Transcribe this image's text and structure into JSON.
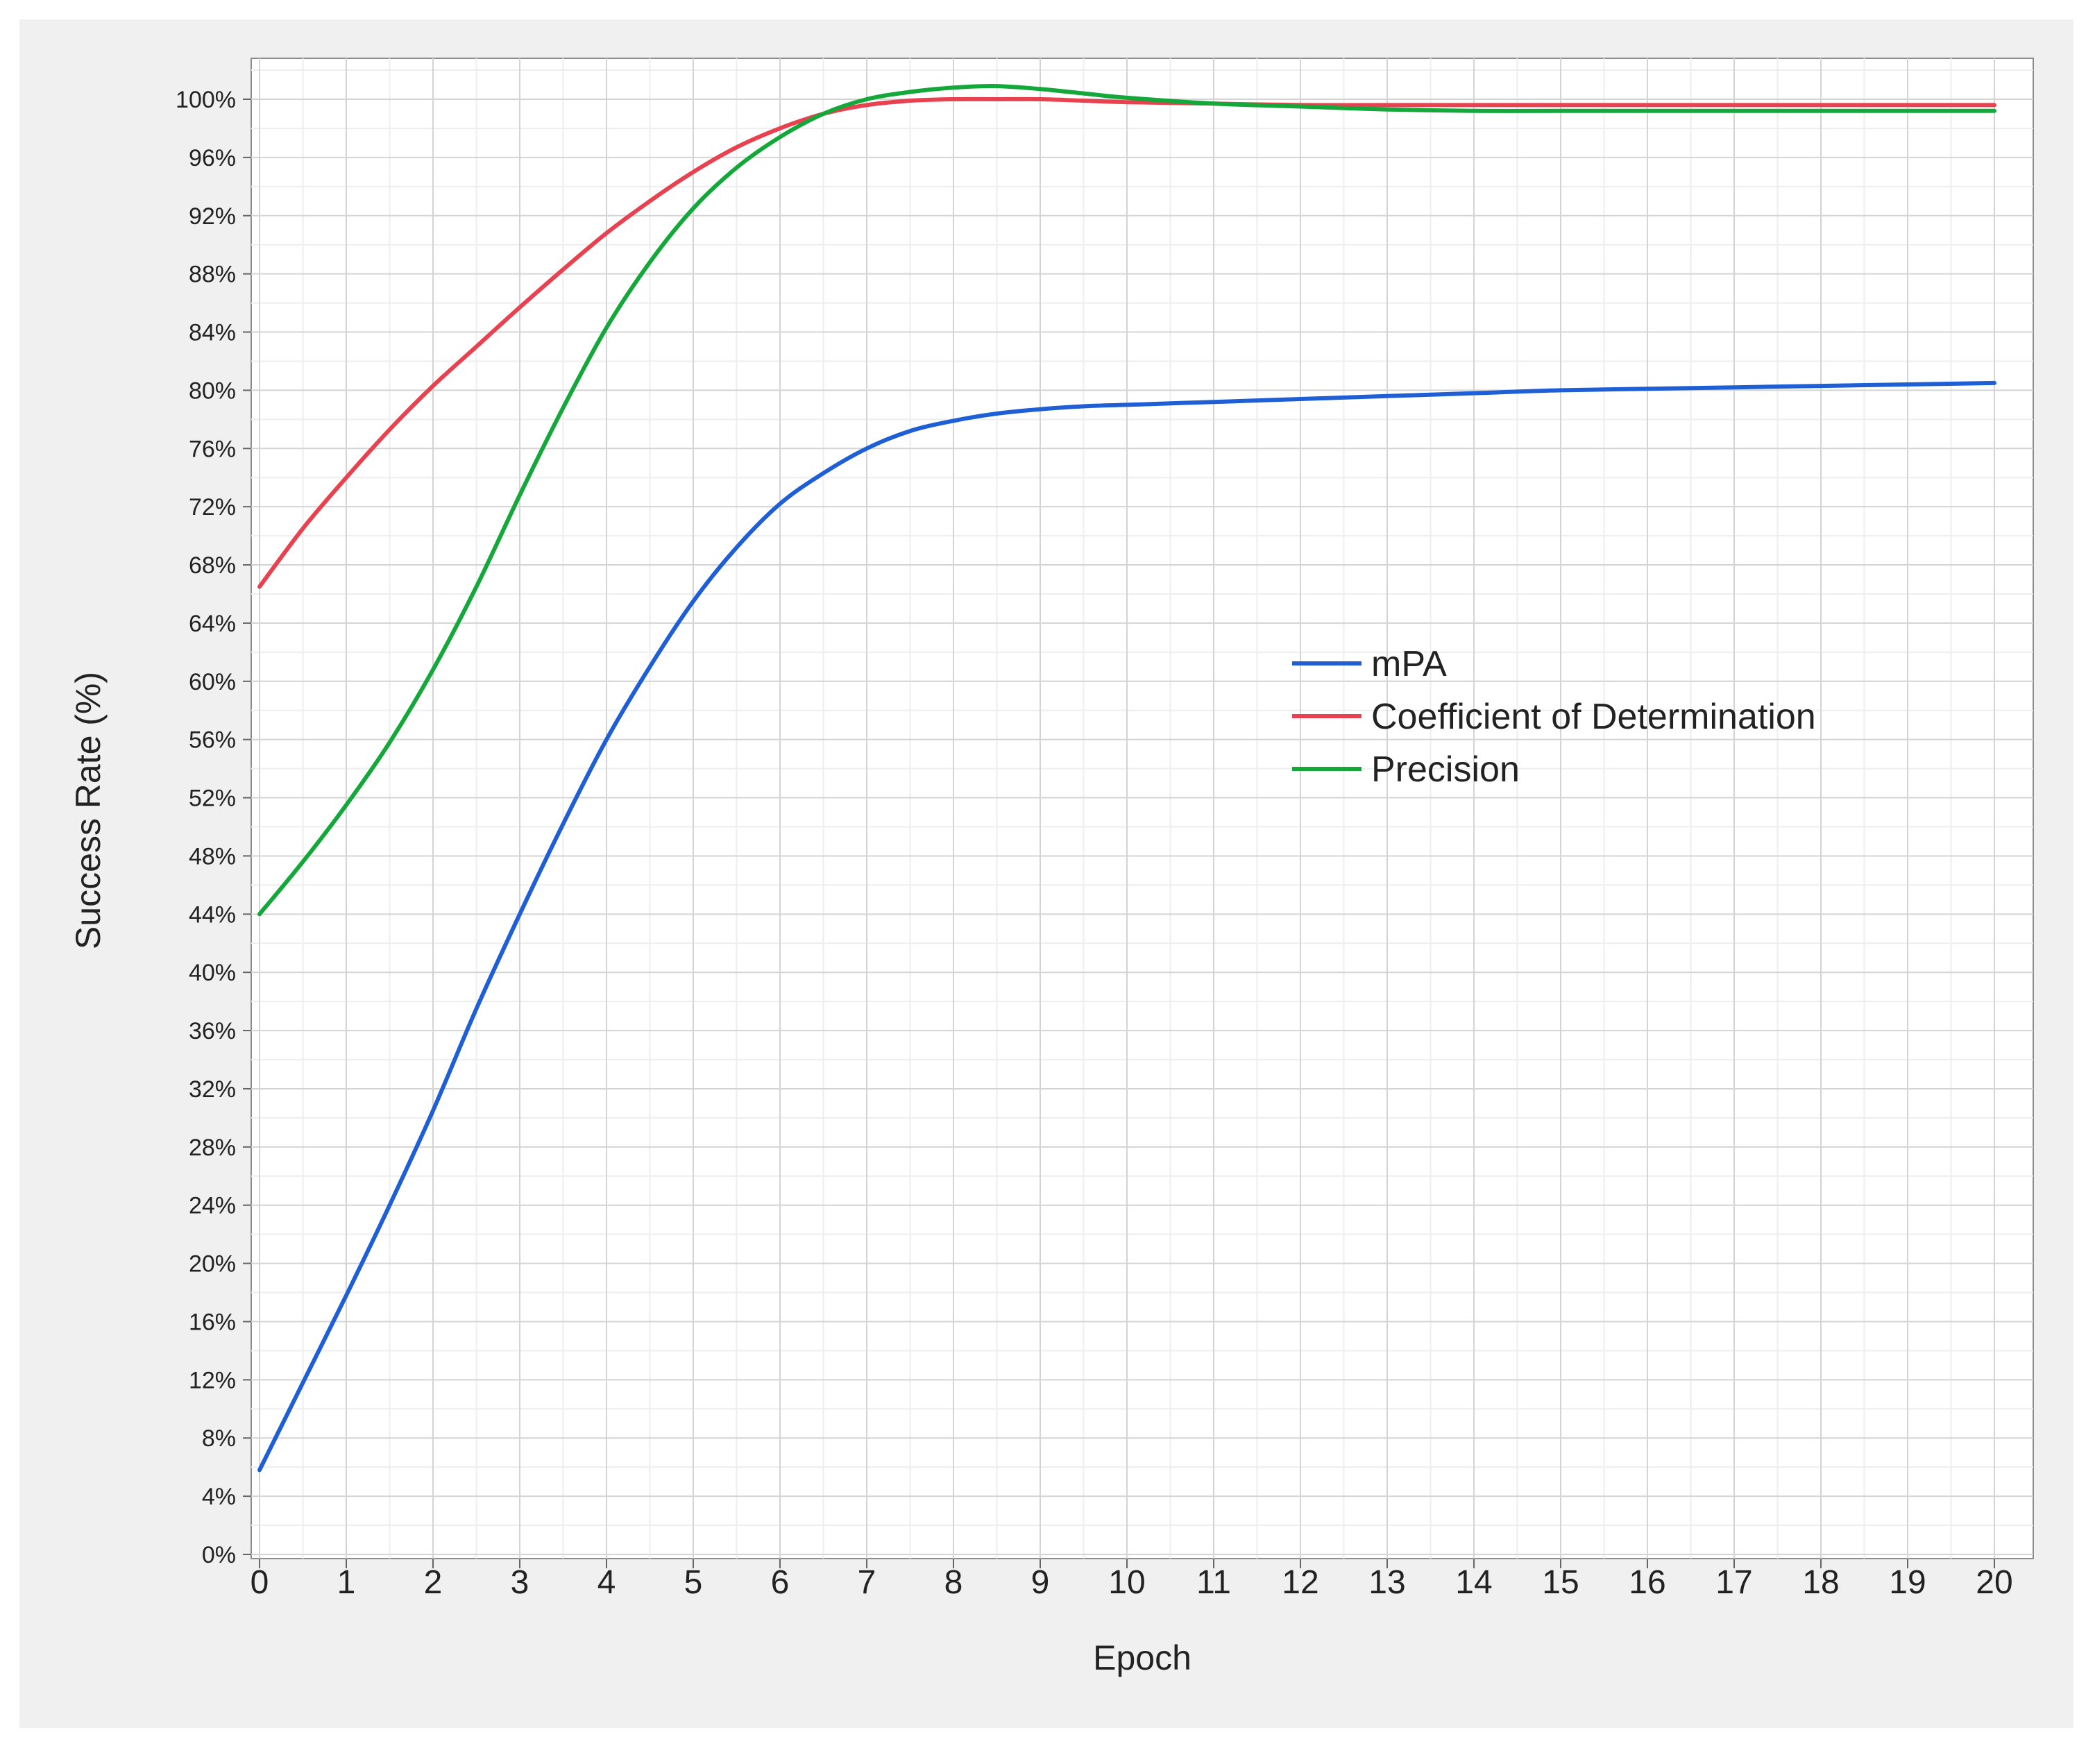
{
  "chart_data": {
    "type": "line",
    "title": "",
    "xlabel": "Epoch",
    "ylabel": "Success Rate (%)",
    "xlim": [
      0,
      20
    ],
    "ylim": [
      0,
      100
    ],
    "x_ticks": [
      0,
      1,
      2,
      3,
      4,
      5,
      6,
      7,
      8,
      9,
      10,
      11,
      12,
      13,
      14,
      15,
      16,
      17,
      18,
      19,
      20
    ],
    "x_tick_labels": [
      "0",
      "1",
      "2",
      "3",
      "4",
      "5",
      "6",
      "7",
      "8",
      "9",
      "10",
      "11",
      "12",
      "13",
      "14",
      "15",
      "16",
      "17",
      "18",
      "19",
      "20"
    ],
    "y_ticks": [
      0,
      4,
      8,
      12,
      16,
      20,
      24,
      28,
      32,
      36,
      40,
      44,
      48,
      52,
      56,
      60,
      64,
      68,
      72,
      76,
      80,
      84,
      88,
      92,
      96,
      100
    ],
    "y_tick_labels": [
      "0%",
      "4%",
      "8%",
      "12%",
      "16%",
      "20%",
      "24%",
      "28%",
      "32%",
      "36%",
      "40%",
      "44%",
      "48%",
      "52%",
      "56%",
      "60%",
      "64%",
      "68%",
      "72%",
      "76%",
      "80%",
      "84%",
      "88%",
      "92%",
      "96%",
      "100%"
    ],
    "grid": true,
    "minor_grid": true,
    "legend_position": "center-right",
    "series": [
      {
        "name": "mPA",
        "color": "#1f5fd6",
        "x": [
          0,
          0.5,
          1,
          1.5,
          2,
          2.5,
          3,
          3.5,
          4,
          4.5,
          5,
          5.5,
          6,
          6.5,
          7,
          7.5,
          8,
          8.5,
          9,
          9.5,
          10,
          11,
          12,
          13,
          14,
          15,
          16,
          17,
          18,
          19,
          20
        ],
        "y": [
          5.8,
          11.8,
          17.8,
          24.0,
          30.5,
          37.5,
          44.0,
          50.2,
          56.0,
          61.0,
          65.5,
          69.2,
          72.2,
          74.3,
          76.0,
          77.2,
          77.9,
          78.4,
          78.7,
          78.9,
          79.0,
          79.2,
          79.4,
          79.6,
          79.8,
          80.0,
          80.1,
          80.2,
          80.3,
          80.4,
          80.5
        ]
      },
      {
        "name": "Coefficient of Determination",
        "color": "#e8414f",
        "x": [
          0,
          0.5,
          1,
          1.5,
          2,
          2.5,
          3,
          3.5,
          4,
          4.5,
          5,
          5.5,
          6,
          6.5,
          7,
          7.5,
          8,
          8.5,
          9,
          9.5,
          10,
          11,
          12,
          13,
          14,
          15,
          16,
          17,
          18,
          19,
          20
        ],
        "y": [
          66.5,
          70.5,
          74.0,
          77.3,
          80.3,
          83.0,
          85.7,
          88.3,
          90.8,
          93.0,
          95.0,
          96.7,
          98.0,
          99.0,
          99.6,
          99.9,
          100.0,
          100.0,
          100.0,
          99.9,
          99.8,
          99.7,
          99.6,
          99.6,
          99.6,
          99.6,
          99.6,
          99.6,
          99.6,
          99.6,
          99.6
        ]
      },
      {
        "name": "Precision",
        "color": "#14a83a",
        "x": [
          0,
          0.5,
          1,
          1.5,
          2,
          2.5,
          3,
          3.5,
          4,
          4.5,
          5,
          5.5,
          6,
          6.5,
          7,
          7.5,
          8,
          8.5,
          9,
          9.5,
          10,
          11,
          12,
          13,
          14,
          15,
          16,
          17,
          18,
          19,
          20
        ],
        "y": [
          44.0,
          47.6,
          51.5,
          55.8,
          60.8,
          66.5,
          72.8,
          78.8,
          84.3,
          88.8,
          92.5,
          95.3,
          97.4,
          99.0,
          100.0,
          100.5,
          100.8,
          100.9,
          100.7,
          100.4,
          100.1,
          99.7,
          99.5,
          99.3,
          99.2,
          99.2,
          99.2,
          99.2,
          99.2,
          99.2,
          99.2
        ]
      }
    ]
  }
}
